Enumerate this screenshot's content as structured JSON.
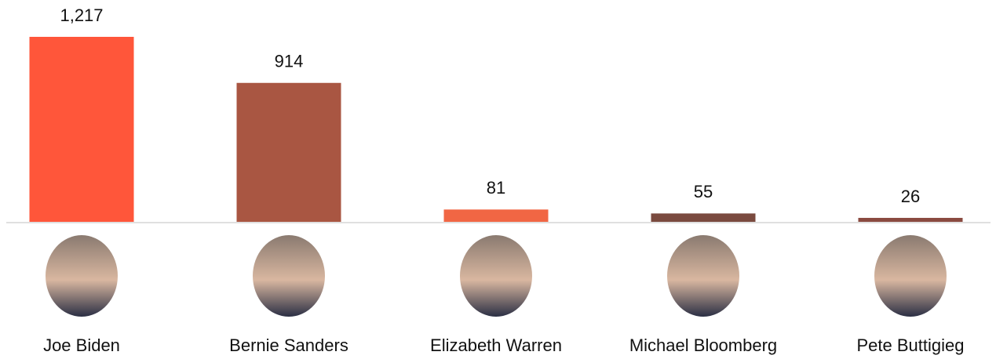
{
  "chart_data": {
    "type": "bar",
    "categories": [
      "Joe Biden",
      "Bernie Sanders",
      "Elizabeth Warren",
      "Michael Bloomberg",
      "Pete Buttigieg"
    ],
    "values": [
      1217,
      914,
      81,
      55,
      26
    ],
    "value_labels": [
      "1,217",
      "914",
      "81",
      "55",
      "26"
    ],
    "colors": [
      "#ff563a",
      "#a95642",
      "#f16644",
      "#7a4a3f",
      "#8a4a40"
    ]
  }
}
